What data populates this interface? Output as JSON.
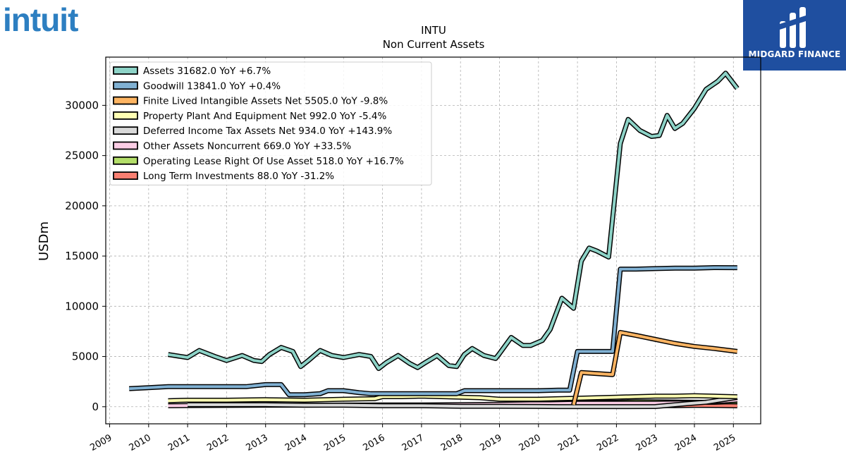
{
  "logos": {
    "left_brand": "intuit",
    "right_brand": "MIDGARD FINANCE"
  },
  "colors": {
    "intuit_blue": "#2d7fc1",
    "midgard_bg": "#1f4fa0"
  },
  "chart_data": {
    "type": "line",
    "title": "INTU",
    "subtitle": "Non Current  Assets",
    "ylabel": "USDm",
    "xlabel": "",
    "xlim": [
      2008.9,
      2025.7
    ],
    "ylim": [
      -1700,
      34800
    ],
    "yticks": [
      0,
      5000,
      10000,
      15000,
      20000,
      25000,
      30000
    ],
    "xticks": [
      2009,
      2010,
      2011,
      2012,
      2013,
      2014,
      2015,
      2016,
      2017,
      2018,
      2019,
      2020,
      2021,
      2022,
      2023,
      2024,
      2025
    ],
    "grid": true,
    "legend_position": "top-left",
    "series": [
      {
        "name": "Assets  31682.0 YoY +6.7%",
        "color": "#8dd3c7",
        "x": [
          2010.5,
          2011.0,
          2011.3,
          2011.7,
          2012.0,
          2012.4,
          2012.7,
          2012.9,
          2013.1,
          2013.4,
          2013.7,
          2013.9,
          2014.1,
          2014.4,
          2014.7,
          2015.0,
          2015.4,
          2015.7,
          2015.9,
          2016.1,
          2016.4,
          2016.7,
          2016.9,
          2017.1,
          2017.4,
          2017.7,
          2017.9,
          2018.1,
          2018.3,
          2018.6,
          2018.9,
          2019.0,
          2019.3,
          2019.6,
          2019.8,
          2020.1,
          2020.3,
          2020.6,
          2020.9,
          2021.1,
          2021.3,
          2021.5,
          2021.8,
          2022.1,
          2022.3,
          2022.6,
          2022.9,
          2023.1,
          2023.3,
          2023.5,
          2023.7,
          2024.0,
          2024.3,
          2024.6,
          2024.8,
          2025.1
        ],
        "values": [
          5200,
          4900,
          5600,
          5000,
          4600,
          5100,
          4600,
          4500,
          5200,
          5900,
          5500,
          4000,
          4600,
          5600,
          5100,
          4900,
          5200,
          5000,
          3800,
          4400,
          5100,
          4300,
          3900,
          4400,
          5100,
          4100,
          4000,
          5200,
          5800,
          5100,
          4800,
          5300,
          6900,
          6100,
          6100,
          6600,
          7700,
          10800,
          9800,
          14500,
          15800,
          15500,
          14900,
          26200,
          28600,
          27500,
          26900,
          27000,
          29000,
          27700,
          28200,
          29700,
          31600,
          32400,
          33200,
          31682
        ]
      },
      {
        "name": "Goodwill  13841.0 YoY +0.4%",
        "color": "#80b1d3",
        "x": [
          2009.5,
          2010.0,
          2010.5,
          2011.0,
          2011.5,
          2012.0,
          2012.5,
          2013.0,
          2013.4,
          2013.6,
          2014.0,
          2014.4,
          2014.6,
          2015.0,
          2015.4,
          2015.7,
          2016.0,
          2016.5,
          2017.0,
          2017.5,
          2017.9,
          2018.1,
          2018.5,
          2019.0,
          2019.5,
          2020.0,
          2020.5,
          2020.8,
          2021.0,
          2021.4,
          2021.9,
          2022.1,
          2022.5,
          2023.0,
          2023.5,
          2024.0,
          2024.5,
          2025.1
        ],
        "values": [
          1800,
          1900,
          2000,
          2000,
          2000,
          2000,
          2000,
          2200,
          2200,
          1200,
          1200,
          1300,
          1600,
          1600,
          1400,
          1300,
          1300,
          1300,
          1300,
          1300,
          1300,
          1600,
          1600,
          1600,
          1600,
          1600,
          1650,
          1650,
          5500,
          5500,
          5500,
          13700,
          13700,
          13750,
          13800,
          13800,
          13850,
          13841
        ]
      },
      {
        "name": "Finite Lived Intangible Assets Net  5505.0 YoY -9.8%",
        "color": "#fdb462",
        "x": [
          2020.9,
          2021.1,
          2021.5,
          2021.9,
          2022.1,
          2022.5,
          2023.0,
          2023.5,
          2024.0,
          2024.5,
          2025.1
        ],
        "values": [
          200,
          3400,
          3300,
          3200,
          7400,
          7100,
          6700,
          6300,
          6000,
          5800,
          5505
        ]
      },
      {
        "name": "Property Plant And Equipment Net  992.0 YoY -5.4%",
        "color": "#ffffb3",
        "x": [
          2010.5,
          2011.0,
          2012.0,
          2013.0,
          2014.0,
          2015.0,
          2015.8,
          2016.0,
          2016.5,
          2017.0,
          2017.5,
          2018.0,
          2018.5,
          2019.0,
          2019.5,
          2020.0,
          2020.5,
          2021.0,
          2021.5,
          2022.0,
          2022.5,
          2023.0,
          2023.5,
          2024.0,
          2024.5,
          2025.1
        ],
        "values": [
          600,
          650,
          650,
          700,
          650,
          750,
          800,
          1000,
          1000,
          1050,
          1000,
          950,
          900,
          750,
          750,
          750,
          800,
          850,
          900,
          950,
          1000,
          1050,
          1050,
          1100,
          1050,
          992
        ]
      },
      {
        "name": "Deferred Income Tax Assets Net  934.0 YoY +143.9%",
        "color": "#d9d9d9",
        "x": [
          2011.0,
          2012.0,
          2013.0,
          2014.0,
          2015.0,
          2016.0,
          2017.0,
          2018.0,
          2019.0,
          2020.0,
          2020.5,
          2021.0,
          2022.0,
          2023.0,
          2023.8,
          2024.3,
          2025.1
        ],
        "values": [
          200,
          200,
          200,
          150,
          150,
          100,
          100,
          50,
          50,
          30,
          10,
          10,
          10,
          20,
          300,
          450,
          934
        ]
      },
      {
        "name": "Other Assets Noncurrent  669.0 YoY +33.5%",
        "color": "#fccde5",
        "x": [
          2010.5,
          2011.0,
          2012.0,
          2013.0,
          2014.0,
          2015.0,
          2016.0,
          2017.0,
          2018.0,
          2019.0,
          2019.8,
          2020.3,
          2021.0,
          2022.0,
          2023.0,
          2024.0,
          2024.5,
          2025.1
        ],
        "values": [
          100,
          120,
          130,
          150,
          150,
          170,
          180,
          180,
          200,
          250,
          300,
          300,
          350,
          350,
          350,
          400,
          500,
          669
        ]
      },
      {
        "name": "Operating Lease Right Of Use Asset  518.0 YoY +16.7%",
        "color": "#b3de69",
        "x": [
          2019.8,
          2020.0,
          2020.5,
          2021.0,
          2021.5,
          2022.0,
          2022.5,
          2023.0,
          2023.5,
          2024.0,
          2024.5,
          2025.1
        ],
        "values": [
          450,
          420,
          400,
          400,
          450,
          450,
          500,
          480,
          470,
          450,
          440,
          518
        ]
      },
      {
        "name": "Long Term Investments  88.0 YoY -31.2%",
        "color": "#fb8072",
        "x": [
          2020.5,
          2021.0,
          2021.5,
          2022.0,
          2022.5,
          2023.0,
          2023.5,
          2024.0,
          2024.5,
          2025.1
        ],
        "values": [
          80,
          100,
          110,
          120,
          130,
          120,
          110,
          130,
          128,
          88
        ]
      }
    ]
  }
}
